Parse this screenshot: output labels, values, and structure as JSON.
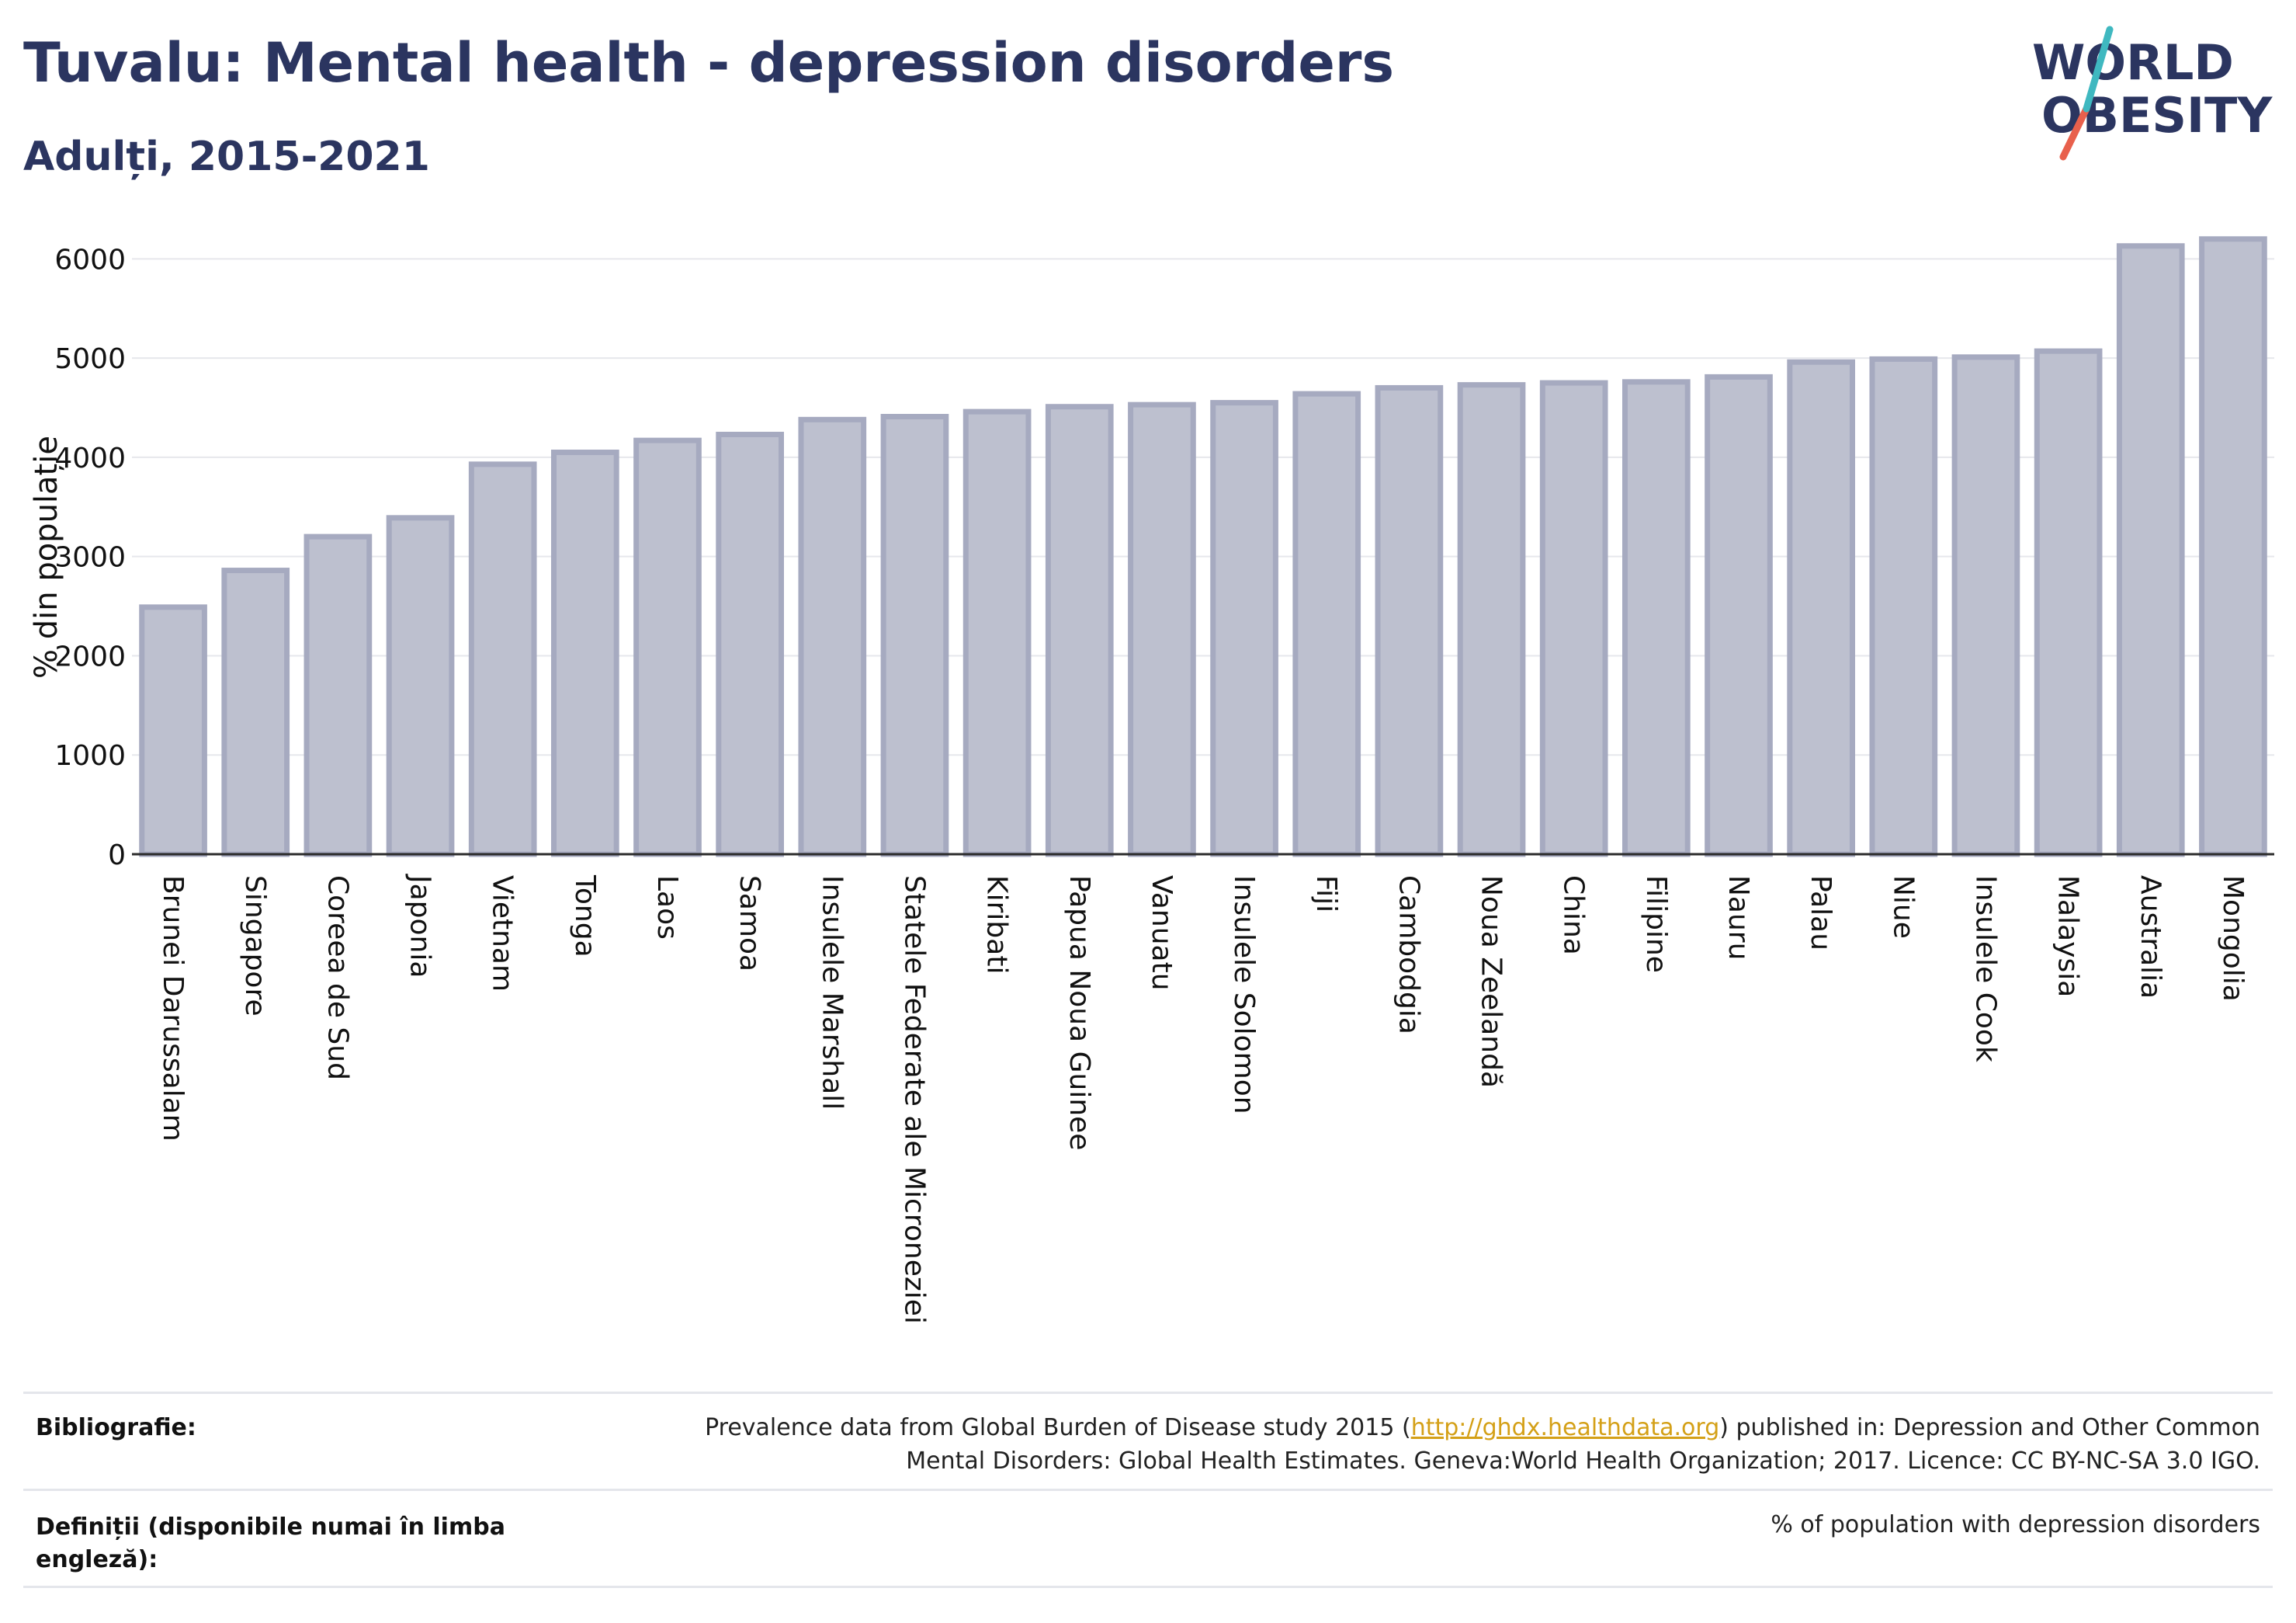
{
  "header": {
    "title": "Tuvalu: Mental health - depression disorders",
    "subtitle": "Adulți, 2015-2021"
  },
  "logo": {
    "line1": "WORLD",
    "line2": "OBESITY"
  },
  "chart_data": {
    "type": "bar",
    "ylabel": "% din populație",
    "ylim": [
      0,
      6300
    ],
    "yticks": [
      0,
      1000,
      2000,
      3000,
      4000,
      5000,
      6000
    ],
    "grid": true,
    "bar_color": "#bdc0cf",
    "bar_edge_color": "#a6aac0",
    "categories": [
      "Brunei Darussalam",
      "Singapore",
      "Coreea de Sud",
      "Japonia",
      "Vietnam",
      "Tonga",
      "Laos",
      "Samoa",
      "Insulele Marshall",
      "Statele Federate ale Microneziei",
      "Kiribati",
      "Papua Noua Guinee",
      "Vanuatu",
      "Insulele Solomon",
      "Fiji",
      "Cambodgia",
      "Noua Zeelandă",
      "China",
      "Filipine",
      "Nauru",
      "Palau",
      "Niue",
      "Insulele Cook",
      "Malaysia",
      "Australia",
      "Mongolia"
    ],
    "values": [
      2490,
      2860,
      3200,
      3390,
      3930,
      4050,
      4170,
      4230,
      4380,
      4410,
      4460,
      4510,
      4530,
      4550,
      4640,
      4700,
      4730,
      4750,
      4760,
      4810,
      4960,
      4990,
      5010,
      5070,
      6130,
      6200
    ]
  },
  "footer": {
    "bibliography_label": "Bibliografie:",
    "bibliography_pre": "Prevalence data from Global Burden of Disease study 2015 (",
    "bibliography_link": "http://ghdx.healthdata.org",
    "bibliography_post": ") published in: Depression and Other Common",
    "bibliography_line2": "Mental Disorders: Global Health Estimates. Geneva:World Health Organization; 2017. Licence: CC BY-NC-SA 3.0 IGO.",
    "definitions_label_1": "Definiții (disponibile numai în limba",
    "definitions_label_2": "engleză):",
    "definitions_value": "% of population with depression disorders"
  }
}
